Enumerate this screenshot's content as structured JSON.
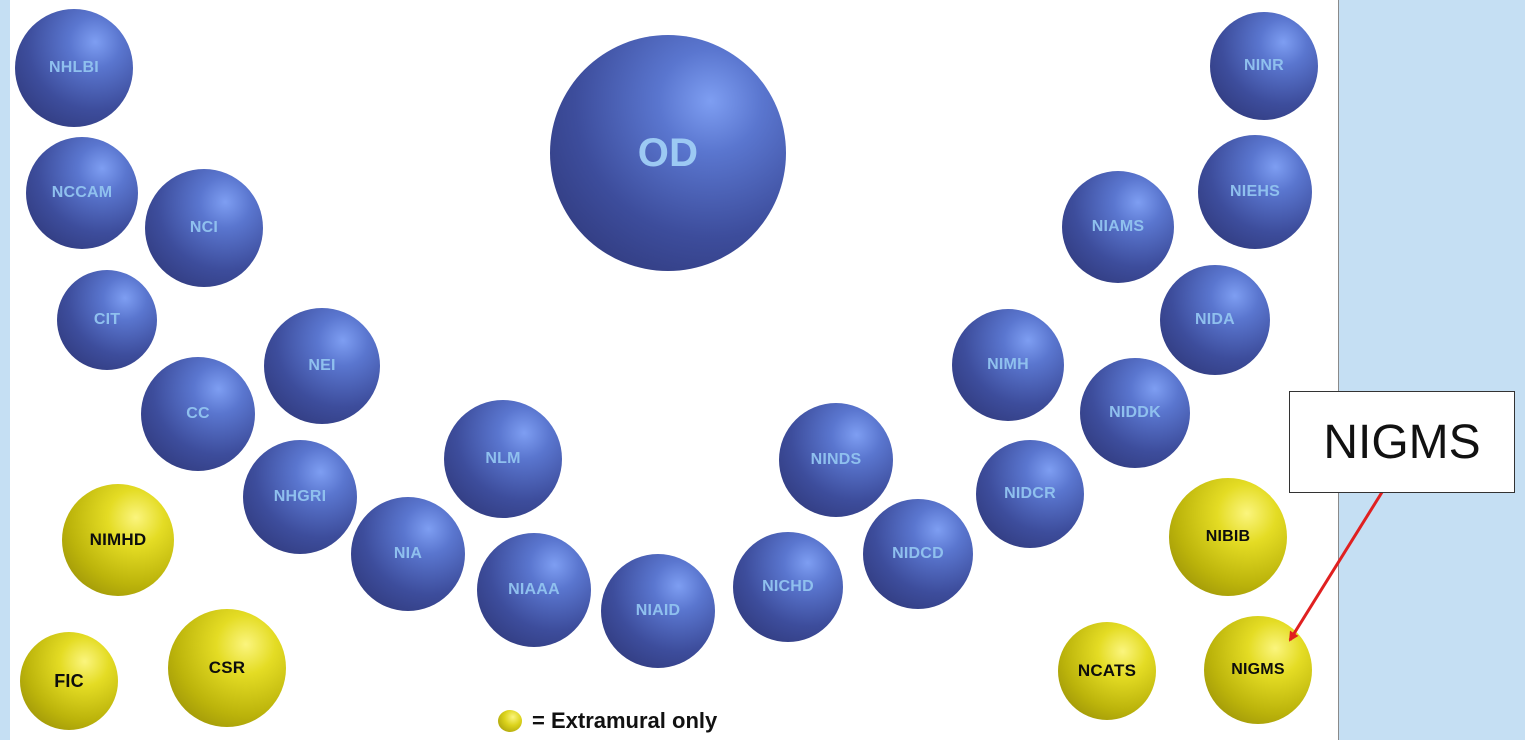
{
  "center": {
    "label": "OD",
    "group": "intramural"
  },
  "institutes": [
    {
      "label": "NHLBI",
      "group": "intramural"
    },
    {
      "label": "NCCAM",
      "group": "intramural"
    },
    {
      "label": "NCI",
      "group": "intramural"
    },
    {
      "label": "CIT",
      "group": "intramural"
    },
    {
      "label": "NEI",
      "group": "intramural"
    },
    {
      "label": "CC",
      "group": "intramural"
    },
    {
      "label": "NHGRI",
      "group": "intramural"
    },
    {
      "label": "NLM",
      "group": "intramural"
    },
    {
      "label": "NIA",
      "group": "intramural"
    },
    {
      "label": "NIAAA",
      "group": "intramural"
    },
    {
      "label": "NIAID",
      "group": "intramural"
    },
    {
      "label": "NICHD",
      "group": "intramural"
    },
    {
      "label": "NINDS",
      "group": "intramural"
    },
    {
      "label": "NIDCD",
      "group": "intramural"
    },
    {
      "label": "NIDCR",
      "group": "intramural"
    },
    {
      "label": "NIMH",
      "group": "intramural"
    },
    {
      "label": "NIDDK",
      "group": "intramural"
    },
    {
      "label": "NIDA",
      "group": "intramural"
    },
    {
      "label": "NIAMS",
      "group": "intramural"
    },
    {
      "label": "NIEHS",
      "group": "intramural"
    },
    {
      "label": "NINR",
      "group": "intramural"
    },
    {
      "label": "NIMHD",
      "group": "extramural"
    },
    {
      "label": "FIC",
      "group": "extramural"
    },
    {
      "label": "CSR",
      "group": "extramural"
    },
    {
      "label": "NIBIB",
      "group": "extramural"
    },
    {
      "label": "NCATS",
      "group": "extramural"
    },
    {
      "label": "NIGMS",
      "group": "extramural"
    }
  ],
  "legend": {
    "text": "= Extramural only"
  },
  "callout": {
    "text": "NIGMS",
    "points_to": "NIGMS"
  },
  "colors": {
    "intramural": "#4a5fb8",
    "extramural": "#d9cf1a",
    "side_panel": "#c5dff3",
    "arrow": "#e02020"
  }
}
